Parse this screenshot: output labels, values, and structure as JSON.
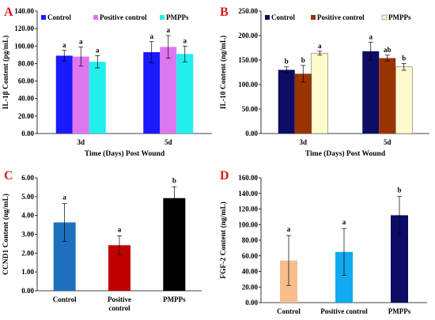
{
  "chart_data": [
    {
      "panel": "A",
      "type": "bar",
      "categories": [
        "3d",
        "5d"
      ],
      "series": [
        {
          "name": "Control",
          "values": [
            89,
            93
          ],
          "errors": [
            6,
            12
          ],
          "sig": [
            "a",
            "a"
          ],
          "color": "#1a1aff"
        },
        {
          "name": "Positive control",
          "values": [
            88,
            99
          ],
          "errors": [
            11,
            13
          ],
          "sig": [
            "a",
            "a"
          ],
          "color": "#dd77ee"
        },
        {
          "name": "PMPPs",
          "values": [
            82,
            91
          ],
          "errors": [
            7,
            9
          ],
          "sig": [
            "a",
            "a"
          ],
          "color": "#22eeee"
        }
      ],
      "ylim": [
        0,
        140
      ],
      "yticks": [
        "0.00",
        "20.00",
        "40.00",
        "60.00",
        "80.00",
        "100.00",
        "120.00",
        "140.00"
      ],
      "ylabel": "IL-1β Content (pg/mL)",
      "xlabel": "Time (Days) Post Wound",
      "legend": "top"
    },
    {
      "panel": "B",
      "type": "bar",
      "categories": [
        "3d",
        "5d"
      ],
      "series": [
        {
          "name": "Control",
          "values": [
            130,
            168
          ],
          "errors": [
            6,
            18
          ],
          "sig": [
            "b",
            "a"
          ],
          "color": "#0d0d66"
        },
        {
          "name": "Positive control",
          "values": [
            122,
            154
          ],
          "errors": [
            17,
            6
          ],
          "sig": [
            "b",
            "ab"
          ],
          "color": "#993300"
        },
        {
          "name": "PMPPs",
          "values": [
            164,
            136
          ],
          "errors": [
            4,
            7
          ],
          "sig": [
            "a",
            "b"
          ],
          "color": "#fffbcc"
        }
      ],
      "ylim": [
        0,
        250
      ],
      "yticks": [
        "0.00",
        "50.00",
        "100.00",
        "150.00",
        "200.00",
        "250.00"
      ],
      "ylabel": "IL-10 Content (ng/mL)",
      "xlabel": "Time (Days) Post Wound",
      "legend": "top"
    },
    {
      "panel": "C",
      "type": "bar",
      "categories": [
        "Control",
        "Positive control",
        "PMPPs"
      ],
      "values": [
        3.63,
        2.42,
        4.92
      ],
      "errors": [
        1.0,
        0.5,
        0.6
      ],
      "sig": [
        "a",
        "a",
        "b"
      ],
      "colors": [
        "#1f6fbf",
        "#c00000",
        "#000000"
      ],
      "ylim": [
        0,
        6
      ],
      "yticks": [
        "0.00",
        "1.00",
        "2.00",
        "3.00",
        "4.00",
        "5.00",
        "6.00"
      ],
      "ylabel": "CCND1 Content (ng/mL)"
    },
    {
      "panel": "D",
      "type": "bar",
      "categories": [
        "Control",
        "Positive control",
        "PMPPs"
      ],
      "values": [
        54,
        65,
        112
      ],
      "errors": [
        32,
        30,
        24
      ],
      "sig": [
        "a",
        "a",
        "b"
      ],
      "colors": [
        "#f7be8c",
        "#11aaee",
        "#0d0d66"
      ],
      "ylim": [
        0,
        160
      ],
      "yticks": [
        "0.00",
        "20.00",
        "40.00",
        "60.00",
        "80.00",
        "100.00",
        "120.00",
        "140.00",
        "160.00"
      ],
      "ylabel": "FGF-2 Content (ng/mL)"
    }
  ]
}
